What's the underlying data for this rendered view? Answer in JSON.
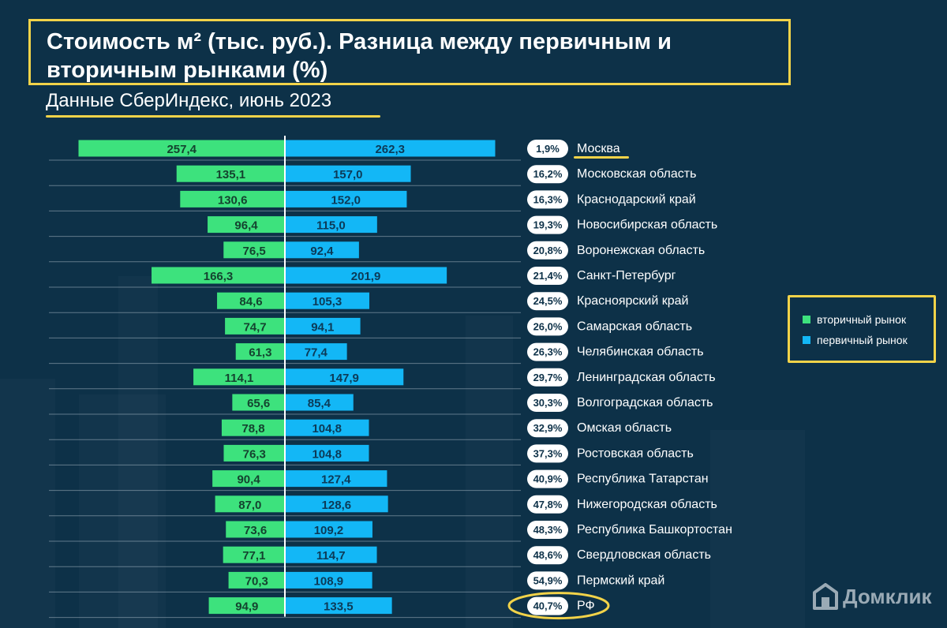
{
  "title": "Стоимость м² (тыс. руб.). Разница между первичным и вторичным рынками (%)",
  "subtitle": "Данные СберИндекс, июнь 2023",
  "legend": {
    "secondary": "вторичный рынок",
    "primary": "первичный рынок"
  },
  "logo": "Домклик",
  "colors": {
    "secondary": "#3de27d",
    "primary": "#13b7f6",
    "highlight": "#f2d349",
    "background": "#0d3148"
  },
  "chart_data": {
    "type": "bar",
    "orientation": "horizontal-diverging",
    "title": "Стоимость м² (тыс. руб.). Разница между первичным и вторичным рынками (%)",
    "categories": [
      "Москва",
      "Московская область",
      "Краснодарский край",
      "Новосибирская область",
      "Воронежская область",
      "Санкт-Петербург",
      "Красноярский край",
      "Самарская область",
      "Челябинская область",
      "Ленинградская область",
      "Волгоградская область",
      "Омская область",
      "Ростовская область",
      "Республика Татарстан",
      "Нижегородская область",
      "Республика Башкортостан",
      "Свердловская область",
      "Пермский край",
      "РФ"
    ],
    "series": [
      {
        "name": "вторичный рынок",
        "values": [
          257.4,
          135.1,
          130.6,
          96.4,
          76.5,
          166.3,
          84.6,
          74.7,
          61.3,
          114.1,
          65.6,
          78.8,
          76.3,
          90.4,
          87.0,
          73.6,
          77.1,
          70.3,
          94.9
        ],
        "labels": [
          "257,4",
          "135,1",
          "130,6",
          "96,4",
          "76,5",
          "166,3",
          "84,6",
          "74,7",
          "61,3",
          "114,1",
          "65,6",
          "78,8",
          "76,3",
          "90,4",
          "87,0",
          "73,6",
          "77,1",
          "70,3",
          "94,9"
        ]
      },
      {
        "name": "первичный рынок",
        "values": [
          262.3,
          157.0,
          152.0,
          115.0,
          92.4,
          201.9,
          105.3,
          94.1,
          77.4,
          147.9,
          85.4,
          104.8,
          104.8,
          127.4,
          128.6,
          109.2,
          114.7,
          108.9,
          133.5
        ],
        "labels": [
          "262,3",
          "157,0",
          "152,0",
          "115,0",
          "92,4",
          "201,9",
          "105,3",
          "94,1",
          "77,4",
          "147,9",
          "85,4",
          "104,8",
          "104,8",
          "127,4",
          "128,6",
          "109,2",
          "114,7",
          "108,9",
          "133,5"
        ]
      }
    ],
    "difference_pct": [
      "1,9%",
      "16,2%",
      "16,3%",
      "19,3%",
      "20,8%",
      "21,4%",
      "24,5%",
      "26,0%",
      "26,3%",
      "29,7%",
      "30,3%",
      "32,9%",
      "37,3%",
      "40,9%",
      "47,8%",
      "48,3%",
      "48,6%",
      "54,9%",
      "40,7%"
    ],
    "highlighted": [
      "Москва",
      "РФ"
    ],
    "legend_position": "right"
  }
}
